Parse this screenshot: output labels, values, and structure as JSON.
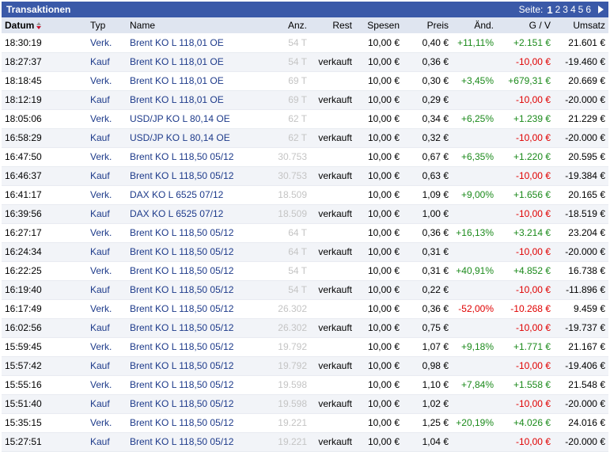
{
  "colors": {
    "header": "#3a59a8",
    "positive": "#1b8a1b",
    "negative": "#e00000",
    "link": "#1d3a8a"
  },
  "title": "Transaktionen",
  "pager": {
    "label": "Seite:",
    "pages": [
      "1",
      "2",
      "3",
      "4",
      "5",
      "6"
    ],
    "current": "1"
  },
  "columns": {
    "datum": "Datum",
    "typ": "Typ",
    "name": "Name",
    "anz": "Anz.",
    "rest": "Rest",
    "spesen": "Spesen",
    "preis": "Preis",
    "aend": "Änd.",
    "gv": "G / V",
    "umsatz": "Umsatz"
  },
  "rows": [
    {
      "datum": "18:30:19",
      "typ": "Verk.",
      "name": "Brent KO L 118,01 OE",
      "anz": "54 T",
      "rest": "",
      "spesen": "10,00 €",
      "preis": "0,40 €",
      "aend": "+11,11%",
      "gv": "+2.151 €",
      "umsatz": "21.601 €"
    },
    {
      "datum": "18:27:37",
      "typ": "Kauf",
      "name": "Brent KO L 118,01 OE",
      "anz": "54 T",
      "rest": "verkauft",
      "spesen": "10,00 €",
      "preis": "0,36 €",
      "aend": "",
      "gv": "-10,00 €",
      "umsatz": "-19.460 €"
    },
    {
      "datum": "18:18:45",
      "typ": "Verk.",
      "name": "Brent KO L 118,01 OE",
      "anz": "69 T",
      "rest": "",
      "spesen": "10,00 €",
      "preis": "0,30 €",
      "aend": "+3,45%",
      "gv": "+679,31 €",
      "umsatz": "20.669 €"
    },
    {
      "datum": "18:12:19",
      "typ": "Kauf",
      "name": "Brent KO L 118,01 OE",
      "anz": "69 T",
      "rest": "verkauft",
      "spesen": "10,00 €",
      "preis": "0,29 €",
      "aend": "",
      "gv": "-10,00 €",
      "umsatz": "-20.000 €"
    },
    {
      "datum": "18:05:06",
      "typ": "Verk.",
      "name": "USD/JP KO L 80,14 OE",
      "anz": "62 T",
      "rest": "",
      "spesen": "10,00 €",
      "preis": "0,34 €",
      "aend": "+6,25%",
      "gv": "+1.239 €",
      "umsatz": "21.229 €"
    },
    {
      "datum": "16:58:29",
      "typ": "Kauf",
      "name": "USD/JP KO L 80,14 OE",
      "anz": "62 T",
      "rest": "verkauft",
      "spesen": "10,00 €",
      "preis": "0,32 €",
      "aend": "",
      "gv": "-10,00 €",
      "umsatz": "-20.000 €"
    },
    {
      "datum": "16:47:50",
      "typ": "Verk.",
      "name": "Brent KO L 118,50 05/12",
      "anz": "30.753",
      "rest": "",
      "spesen": "10,00 €",
      "preis": "0,67 €",
      "aend": "+6,35%",
      "gv": "+1.220 €",
      "umsatz": "20.595 €"
    },
    {
      "datum": "16:46:37",
      "typ": "Kauf",
      "name": "Brent KO L 118,50 05/12",
      "anz": "30.753",
      "rest": "verkauft",
      "spesen": "10,00 €",
      "preis": "0,63 €",
      "aend": "",
      "gv": "-10,00 €",
      "umsatz": "-19.384 €"
    },
    {
      "datum": "16:41:17",
      "typ": "Verk.",
      "name": "DAX KO L 6525 07/12",
      "anz": "18.509",
      "rest": "",
      "spesen": "10,00 €",
      "preis": "1,09 €",
      "aend": "+9,00%",
      "gv": "+1.656 €",
      "umsatz": "20.165 €"
    },
    {
      "datum": "16:39:56",
      "typ": "Kauf",
      "name": "DAX KO L 6525 07/12",
      "anz": "18.509",
      "rest": "verkauft",
      "spesen": "10,00 €",
      "preis": "1,00 €",
      "aend": "",
      "gv": "-10,00 €",
      "umsatz": "-18.519 €"
    },
    {
      "datum": "16:27:17",
      "typ": "Verk.",
      "name": "Brent KO L 118,50 05/12",
      "anz": "64 T",
      "rest": "",
      "spesen": "10,00 €",
      "preis": "0,36 €",
      "aend": "+16,13%",
      "gv": "+3.214 €",
      "umsatz": "23.204 €"
    },
    {
      "datum": "16:24:34",
      "typ": "Kauf",
      "name": "Brent KO L 118,50 05/12",
      "anz": "64 T",
      "rest": "verkauft",
      "spesen": "10,00 €",
      "preis": "0,31 €",
      "aend": "",
      "gv": "-10,00 €",
      "umsatz": "-20.000 €"
    },
    {
      "datum": "16:22:25",
      "typ": "Verk.",
      "name": "Brent KO L 118,50 05/12",
      "anz": "54 T",
      "rest": "",
      "spesen": "10,00 €",
      "preis": "0,31 €",
      "aend": "+40,91%",
      "gv": "+4.852 €",
      "umsatz": "16.738 €"
    },
    {
      "datum": "16:19:40",
      "typ": "Kauf",
      "name": "Brent KO L 118,50 05/12",
      "anz": "54 T",
      "rest": "verkauft",
      "spesen": "10,00 €",
      "preis": "0,22 €",
      "aend": "",
      "gv": "-10,00 €",
      "umsatz": "-11.896 €"
    },
    {
      "datum": "16:17:49",
      "typ": "Verk.",
      "name": "Brent KO L 118,50 05/12",
      "anz": "26.302",
      "rest": "",
      "spesen": "10,00 €",
      "preis": "0,36 €",
      "aend": "-52,00%",
      "gv": "-10.268 €",
      "umsatz": "9.459 €"
    },
    {
      "datum": "16:02:56",
      "typ": "Kauf",
      "name": "Brent KO L 118,50 05/12",
      "anz": "26.302",
      "rest": "verkauft",
      "spesen": "10,00 €",
      "preis": "0,75 €",
      "aend": "",
      "gv": "-10,00 €",
      "umsatz": "-19.737 €"
    },
    {
      "datum": "15:59:45",
      "typ": "Verk.",
      "name": "Brent KO L 118,50 05/12",
      "anz": "19.792",
      "rest": "",
      "spesen": "10,00 €",
      "preis": "1,07 €",
      "aend": "+9,18%",
      "gv": "+1.771 €",
      "umsatz": "21.167 €"
    },
    {
      "datum": "15:57:42",
      "typ": "Kauf",
      "name": "Brent KO L 118,50 05/12",
      "anz": "19.792",
      "rest": "verkauft",
      "spesen": "10,00 €",
      "preis": "0,98 €",
      "aend": "",
      "gv": "-10,00 €",
      "umsatz": "-19.406 €"
    },
    {
      "datum": "15:55:16",
      "typ": "Verk.",
      "name": "Brent KO L 118,50 05/12",
      "anz": "19.598",
      "rest": "",
      "spesen": "10,00 €",
      "preis": "1,10 €",
      "aend": "+7,84%",
      "gv": "+1.558 €",
      "umsatz": "21.548 €"
    },
    {
      "datum": "15:51:40",
      "typ": "Kauf",
      "name": "Brent KO L 118,50 05/12",
      "anz": "19.598",
      "rest": "verkauft",
      "spesen": "10,00 €",
      "preis": "1,02 €",
      "aend": "",
      "gv": "-10,00 €",
      "umsatz": "-20.000 €"
    },
    {
      "datum": "15:35:15",
      "typ": "Verk.",
      "name": "Brent KO L 118,50 05/12",
      "anz": "19.221",
      "rest": "",
      "spesen": "10,00 €",
      "preis": "1,25 €",
      "aend": "+20,19%",
      "gv": "+4.026 €",
      "umsatz": "24.016 €"
    },
    {
      "datum": "15:27:51",
      "typ": "Kauf",
      "name": "Brent KO L 118,50 05/12",
      "anz": "19.221",
      "rest": "verkauft",
      "spesen": "10,00 €",
      "preis": "1,04 €",
      "aend": "",
      "gv": "-10,00 €",
      "umsatz": "-20.000 €"
    }
  ]
}
